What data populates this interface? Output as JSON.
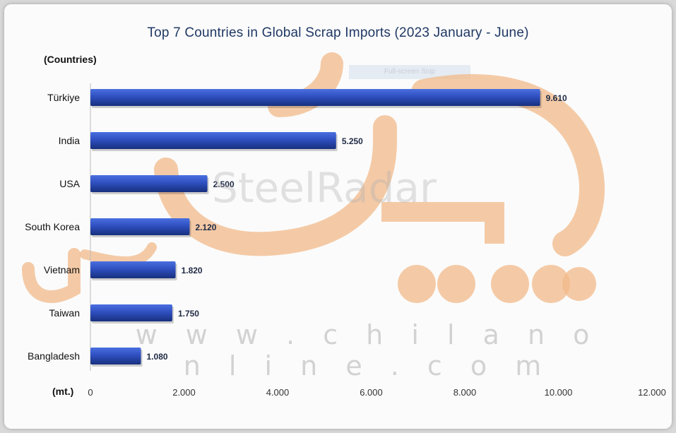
{
  "chart_data": {
    "type": "bar",
    "orientation": "horizontal",
    "title": "Top 7 Countries in Global Scrap Imports (2023 January - June)",
    "ylabel": "(Countries)",
    "xlabel": "(mt.)",
    "categories": [
      "Türkiye",
      "India",
      "USA",
      "South Korea",
      "Vietnam",
      "Taiwan",
      "Bangladesh"
    ],
    "values": [
      9.61,
      5.25,
      2.5,
      2.12,
      1.82,
      1.75,
      1.08
    ],
    "value_labels": [
      "9.610",
      "5.250",
      "2.500",
      "2.120",
      "1.820",
      "1.750",
      "1.080"
    ],
    "xlim": [
      0,
      12
    ],
    "x_ticks": [
      0,
      2,
      4,
      6,
      8,
      10,
      12
    ],
    "x_tick_labels": [
      "0",
      "2.000",
      "4.000",
      "6.000",
      "8.000",
      "10.000",
      "12.000"
    ],
    "grid": false,
    "bar_color": "#2f4fc0",
    "bar_color_dark": "#17307e"
  },
  "overlay": {
    "snip_label": "Full-screen Snip"
  },
  "watermarks": {
    "brand": "SteelRadar",
    "url": "w w w . c h i l a n o n l i n e . c o m",
    "logo_color": "#f2b98a",
    "logo_text": "چیلان"
  }
}
